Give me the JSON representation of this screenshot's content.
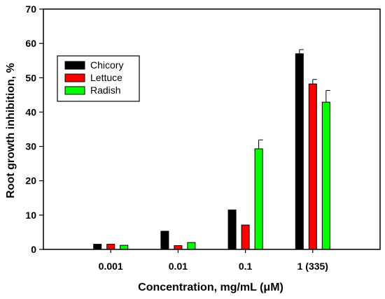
{
  "chart_data": {
    "type": "bar",
    "title": "",
    "xlabel": "Concentration, mg/mL (μM)",
    "ylabel": "Root growth inhibition, %",
    "categories": [
      "0.001",
      "0.01",
      "0.1",
      "1 (335)"
    ],
    "ylim": [
      0,
      70
    ],
    "yticks": [
      0,
      10,
      20,
      30,
      40,
      50,
      60,
      70
    ],
    "grid": false,
    "legend_position": "top-left",
    "series": [
      {
        "name": "Chicory",
        "color": "#000000",
        "values": [
          1.5,
          5.3,
          11.5,
          57.0
        ],
        "errors": [
          0,
          0,
          0,
          1.2
        ]
      },
      {
        "name": "Lettuce",
        "color": "#ff0000",
        "values": [
          1.5,
          1.1,
          7.1,
          48.2
        ],
        "errors": [
          0,
          0,
          0,
          1.3
        ]
      },
      {
        "name": "Radish",
        "color": "#00ff00",
        "values": [
          1.2,
          2.0,
          29.3,
          42.9
        ],
        "errors": [
          0,
          0,
          2.6,
          3.4
        ]
      }
    ]
  }
}
